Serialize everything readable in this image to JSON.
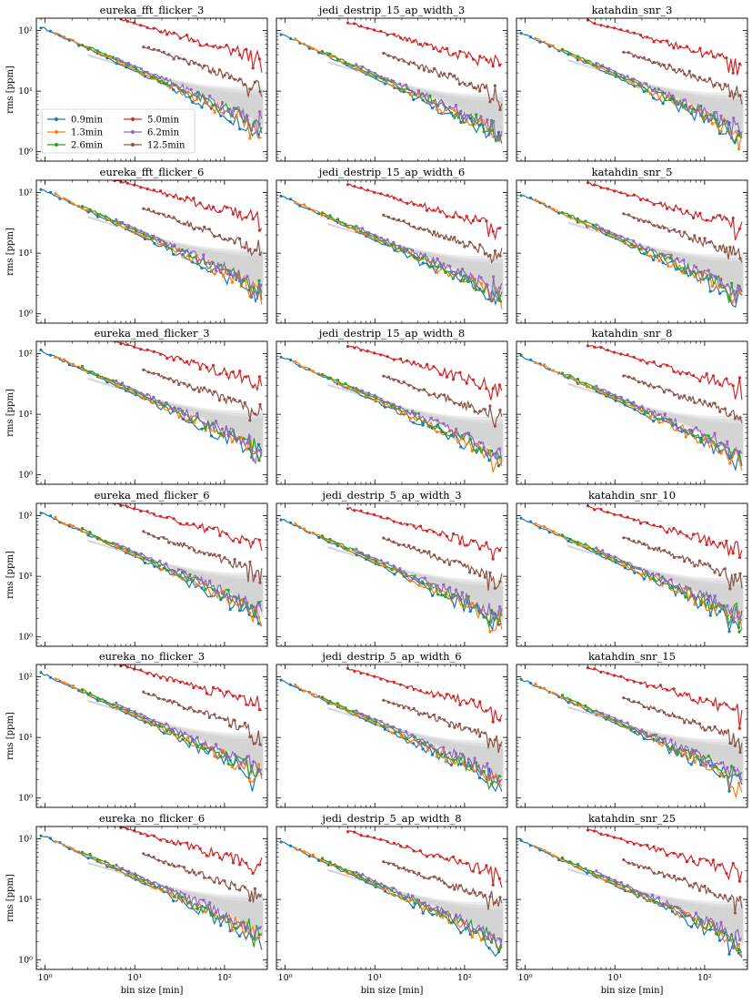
{
  "chart_data": {
    "type": "line",
    "scale": "log-log",
    "xlabel": "bin size [min]",
    "ylabel": "rms [ppm]",
    "xlim": [
      0.8,
      300
    ],
    "ylim": [
      0.7,
      160
    ],
    "x_major_ticks": [
      1,
      10,
      100
    ],
    "x_tick_labels": [
      "10⁰",
      "10¹",
      "10²"
    ],
    "y_major_ticks": [
      1,
      10,
      100
    ],
    "y_tick_labels": [
      "10⁰",
      "10¹",
      "10²"
    ],
    "legend": {
      "placement": "lower-left",
      "panel_index": 0,
      "entries": [
        "0.9min",
        "1.3min",
        "2.6min",
        "5.0min",
        "6.2min",
        "12.5min"
      ]
    },
    "series": [
      {
        "name": "0.9min",
        "color": "#1f77b4",
        "x_start": 0.9,
        "y_factor": 1.0,
        "slope": -0.7,
        "noise": 0.14
      },
      {
        "name": "1.3min",
        "color": "#ff7f0e",
        "x_start": 1.3,
        "y_factor": 1.03,
        "slope": -0.69,
        "noise": 0.13
      },
      {
        "name": "2.6min",
        "color": "#2ca02c",
        "x_start": 2.6,
        "y_factor": 1.07,
        "slope": -0.68,
        "noise": 0.13
      },
      {
        "name": "5.0min",
        "color": "#d62728",
        "x_start": 5.0,
        "y_factor": 3.1,
        "slope": -0.42,
        "noise": 0.1
      },
      {
        "name": "6.2min",
        "color": "#9467bd",
        "x_start": 6.2,
        "y_factor": 1.12,
        "slope": -0.67,
        "noise": 0.12
      },
      {
        "name": "12.5min",
        "color": "#8c564b",
        "x_start": 12.5,
        "y_factor": 1.85,
        "slope": -0.52,
        "noise": 0.08
      }
    ],
    "envelope": {
      "description_color": "#9a9a9a",
      "low_slope": -0.5,
      "high_slope": -0.42
    },
    "panels": [
      {
        "title": "eureka_fft_flicker_3",
        "y0": 120
      },
      {
        "title": "jedi_destrip_15_ap_width_3",
        "y0": 92
      },
      {
        "title": "katahdin_snr_3",
        "y0": 98
      },
      {
        "title": "eureka_fft_flicker_6",
        "y0": 120
      },
      {
        "title": "jedi_destrip_15_ap_width_6",
        "y0": 92
      },
      {
        "title": "katahdin_snr_5",
        "y0": 97
      },
      {
        "title": "eureka_med_flicker_3",
        "y0": 118
      },
      {
        "title": "jedi_destrip_15_ap_width_8",
        "y0": 93
      },
      {
        "title": "katahdin_snr_8",
        "y0": 96
      },
      {
        "title": "eureka_med_flicker_6",
        "y0": 118
      },
      {
        "title": "jedi_destrip_5_ap_width_3",
        "y0": 92
      },
      {
        "title": "katahdin_snr_10",
        "y0": 96
      },
      {
        "title": "eureka_no_flicker_3",
        "y0": 122
      },
      {
        "title": "jedi_destrip_5_ap_width_6",
        "y0": 92
      },
      {
        "title": "katahdin_snr_15",
        "y0": 96
      },
      {
        "title": "eureka_no_flicker_6",
        "y0": 122
      },
      {
        "title": "jedi_destrip_5_ap_width_8",
        "y0": 93
      },
      {
        "title": "katahdin_snr_25",
        "y0": 96
      }
    ]
  }
}
